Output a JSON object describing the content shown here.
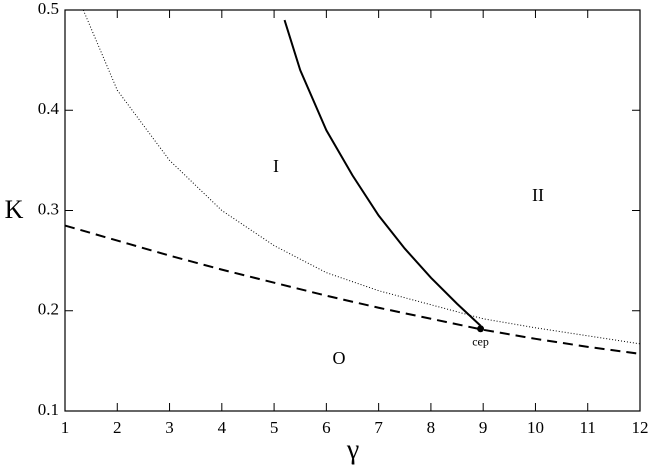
{
  "chart_data": {
    "type": "line",
    "xlabel": "γ",
    "ylabel": "K",
    "xlim": [
      1,
      12
    ],
    "ylim": [
      0.1,
      0.5
    ],
    "xticks": [
      1,
      2,
      3,
      4,
      5,
      6,
      7,
      8,
      9,
      10,
      11,
      12
    ],
    "yticks": [
      0.1,
      0.2,
      0.3,
      0.4,
      0.5
    ],
    "series": [
      {
        "style": "dashed",
        "color": "#000000",
        "x": [
          1,
          2,
          3,
          4,
          5,
          6,
          7,
          8,
          9,
          10,
          11,
          12
        ],
        "values": [
          0.285,
          0.27,
          0.255,
          0.241,
          0.228,
          0.215,
          0.203,
          0.192,
          0.181,
          0.172,
          0.164,
          0.157
        ]
      },
      {
        "style": "dotted",
        "color": "#000000",
        "x": [
          1.35,
          2,
          3,
          4,
          5,
          6,
          7,
          8,
          9,
          10,
          11,
          12
        ],
        "values": [
          0.5,
          0.42,
          0.35,
          0.3,
          0.265,
          0.238,
          0.22,
          0.206,
          0.192,
          0.183,
          0.175,
          0.167
        ]
      },
      {
        "style": "solid",
        "color": "#000000",
        "x": [
          5.2,
          5.5,
          6,
          6.5,
          7,
          7.5,
          8,
          8.5,
          8.95
        ],
        "values": [
          0.49,
          0.44,
          0.38,
          0.335,
          0.295,
          0.262,
          0.233,
          0.207,
          0.185
        ]
      }
    ],
    "point": {
      "label": "cep",
      "x": 8.95,
      "value": 0.182
    },
    "annotations": [
      "I",
      "II",
      "O"
    ]
  }
}
